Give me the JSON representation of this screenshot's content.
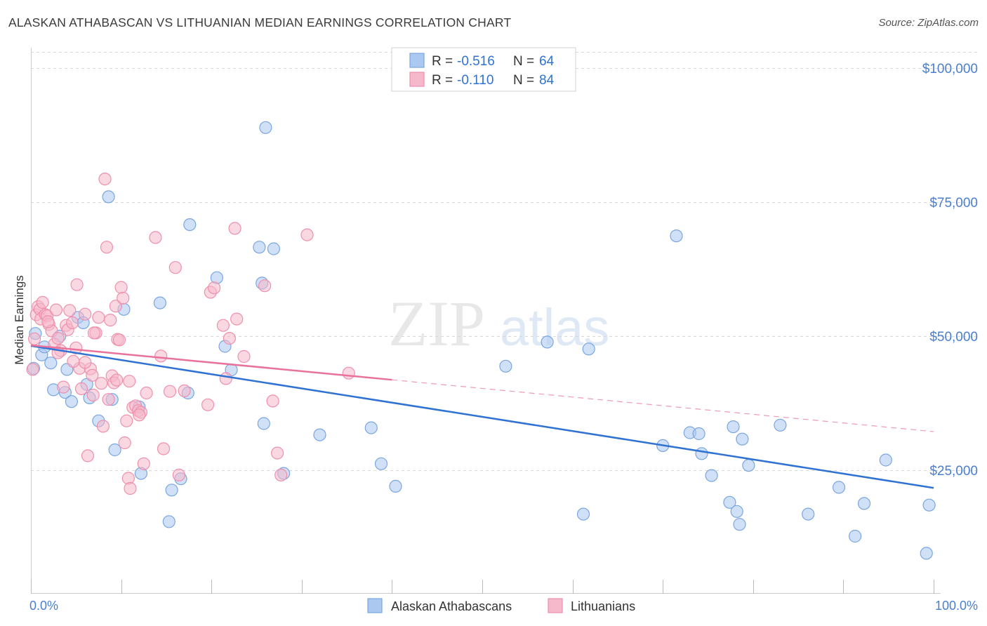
{
  "header": {
    "title": "ALASKAN ATHABASCAN VS LITHUANIAN MEDIAN EARNINGS CORRELATION CHART",
    "source": "Source: ZipAtlas.com"
  },
  "watermark": {
    "zip": "ZIP",
    "atlas": "atlas"
  },
  "colors": {
    "blue_fill": "#aac8f0",
    "blue_stroke": "#7aa6e0",
    "blue_line": "#2f72d3",
    "pink_fill": "#f6b8cb",
    "pink_stroke": "#ee90ad",
    "pink_line": "#e8729b",
    "accent_text": "#4a7fd0",
    "grid": "#d8d8d8"
  },
  "legend": {
    "rows": [
      {
        "r_label": "R = ",
        "r_value": "-0.516",
        "n_label": "N = ",
        "n_value": "64"
      },
      {
        "r_label": "R = ",
        "r_value": "-0.110",
        "n_label": "N = ",
        "n_value": "84"
      }
    ]
  },
  "chart_data": {
    "type": "scatter",
    "title": "ALASKAN ATHABASCAN VS LITHUANIAN MEDIAN EARNINGS CORRELATION CHART",
    "xlabel": "",
    "ylabel": "Median Earnings",
    "x_tick_labels": [
      "0.0%",
      "100.0%"
    ],
    "y_tick_labels": [
      "$100,000",
      "$75,000",
      "$50,000",
      "$25,000"
    ],
    "y_ticks": [
      100000,
      75000,
      50000,
      25000
    ],
    "xlim": [
      0,
      100
    ],
    "ylim": [
      0,
      103000
    ],
    "grid": true,
    "legend_position": "top-center",
    "series": [
      {
        "name": "Alaskan Athabascans",
        "color": "#aac8f0",
        "r": -0.516,
        "n": 64,
        "trend": {
          "x0": 0,
          "y0": 48200,
          "x1": 100,
          "y1": 21700,
          "dashed_from": null
        },
        "points": [
          [
            0.3,
            44000
          ],
          [
            0.5,
            50500
          ],
          [
            1.2,
            46500
          ],
          [
            1.5,
            48000
          ],
          [
            2.2,
            45000
          ],
          [
            2.5,
            40000
          ],
          [
            3.2,
            50000
          ],
          [
            3.8,
            39500
          ],
          [
            4.0,
            43800
          ],
          [
            4.5,
            37800
          ],
          [
            5.2,
            53500
          ],
          [
            5.8,
            52500
          ],
          [
            6.2,
            41000
          ],
          [
            6.5,
            38500
          ],
          [
            7.5,
            34200
          ],
          [
            8.6,
            76000
          ],
          [
            9.0,
            38200
          ],
          [
            9.3,
            28800
          ],
          [
            10.3,
            55000
          ],
          [
            12.0,
            36800
          ],
          [
            12.2,
            24400
          ],
          [
            14.3,
            56200
          ],
          [
            15.3,
            15400
          ],
          [
            15.6,
            21300
          ],
          [
            16.6,
            23400
          ],
          [
            17.4,
            39400
          ],
          [
            17.6,
            70800
          ],
          [
            20.6,
            60900
          ],
          [
            21.5,
            48100
          ],
          [
            22.2,
            43700
          ],
          [
            25.3,
            66600
          ],
          [
            25.6,
            59900
          ],
          [
            25.8,
            33700
          ],
          [
            26.0,
            88900
          ],
          [
            26.9,
            66300
          ],
          [
            28.0,
            24400
          ],
          [
            32.0,
            31600
          ],
          [
            37.7,
            32900
          ],
          [
            38.8,
            26200
          ],
          [
            40.4,
            22000
          ],
          [
            52.6,
            44400
          ],
          [
            57.2,
            48900
          ],
          [
            61.2,
            16800
          ],
          [
            61.8,
            47600
          ],
          [
            70.0,
            29600
          ],
          [
            71.5,
            68700
          ],
          [
            73.0,
            32000
          ],
          [
            74.0,
            31800
          ],
          [
            74.3,
            28100
          ],
          [
            75.4,
            24000
          ],
          [
            77.4,
            19000
          ],
          [
            77.8,
            33100
          ],
          [
            78.2,
            17300
          ],
          [
            78.5,
            14900
          ],
          [
            78.8,
            30800
          ],
          [
            79.5,
            25900
          ],
          [
            83.0,
            33400
          ],
          [
            86.1,
            16800
          ],
          [
            89.5,
            21800
          ],
          [
            91.3,
            12700
          ],
          [
            92.3,
            18800
          ],
          [
            94.7,
            26900
          ],
          [
            99.2,
            9500
          ],
          [
            99.5,
            18500
          ]
        ]
      },
      {
        "name": "Lithuanians",
        "color": "#f6b8cb",
        "r": -0.11,
        "n": 84,
        "trend": {
          "x0": 0,
          "y0": 48300,
          "x1": 100,
          "y1": 32200,
          "dashed_from": 40
        },
        "points": [
          [
            0.2,
            43800
          ],
          [
            0.4,
            49500
          ],
          [
            0.6,
            54000
          ],
          [
            0.8,
            55500
          ],
          [
            1.0,
            55000
          ],
          [
            1.1,
            53200
          ],
          [
            1.3,
            56300
          ],
          [
            1.6,
            54000
          ],
          [
            1.8,
            53800
          ],
          [
            2.0,
            52200
          ],
          [
            2.3,
            51000
          ],
          [
            2.6,
            48500
          ],
          [
            2.8,
            54900
          ],
          [
            3.0,
            49600
          ],
          [
            3.3,
            47300
          ],
          [
            3.6,
            40500
          ],
          [
            3.9,
            52000
          ],
          [
            4.1,
            51200
          ],
          [
            4.3,
            54800
          ],
          [
            4.6,
            52500
          ],
          [
            5.1,
            59600
          ],
          [
            5.4,
            44000
          ],
          [
            5.6,
            40200
          ],
          [
            6.0,
            54100
          ],
          [
            6.3,
            27700
          ],
          [
            6.6,
            43900
          ],
          [
            6.9,
            39000
          ],
          [
            7.2,
            50600
          ],
          [
            7.5,
            53500
          ],
          [
            7.8,
            41200
          ],
          [
            8.0,
            33200
          ],
          [
            8.2,
            79300
          ],
          [
            8.4,
            66600
          ],
          [
            8.6,
            38200
          ],
          [
            8.8,
            53000
          ],
          [
            9.0,
            42600
          ],
          [
            9.2,
            41300
          ],
          [
            9.4,
            55600
          ],
          [
            9.6,
            49400
          ],
          [
            9.8,
            49300
          ],
          [
            10.0,
            59100
          ],
          [
            10.2,
            57100
          ],
          [
            10.4,
            30100
          ],
          [
            10.6,
            34200
          ],
          [
            10.8,
            23500
          ],
          [
            11.0,
            21600
          ],
          [
            11.3,
            36700
          ],
          [
            11.6,
            37000
          ],
          [
            11.9,
            36100
          ],
          [
            12.2,
            35800
          ],
          [
            12.5,
            26200
          ],
          [
            12.8,
            39400
          ],
          [
            13.8,
            68400
          ],
          [
            14.4,
            46300
          ],
          [
            14.7,
            29000
          ],
          [
            15.4,
            39700
          ],
          [
            16.0,
            62800
          ],
          [
            16.4,
            24100
          ],
          [
            17.0,
            39800
          ],
          [
            19.6,
            37200
          ],
          [
            19.9,
            58200
          ],
          [
            20.3,
            59000
          ],
          [
            21.3,
            52000
          ],
          [
            21.6,
            42100
          ],
          [
            22.0,
            49600
          ],
          [
            22.6,
            70100
          ],
          [
            22.8,
            53200
          ],
          [
            23.6,
            46200
          ],
          [
            25.9,
            59400
          ],
          [
            26.8,
            37900
          ],
          [
            27.3,
            28200
          ],
          [
            27.7,
            24100
          ],
          [
            30.6,
            68900
          ],
          [
            35.2,
            43100
          ],
          [
            5.0,
            47800
          ],
          [
            6.8,
            42700
          ],
          [
            9.5,
            41800
          ],
          [
            3.0,
            46900
          ],
          [
            4.7,
            45300
          ],
          [
            12.0,
            35300
          ],
          [
            10.9,
            41600
          ],
          [
            6.0,
            45100
          ],
          [
            1.9,
            52700
          ],
          [
            7.0,
            50600
          ]
        ]
      }
    ]
  }
}
